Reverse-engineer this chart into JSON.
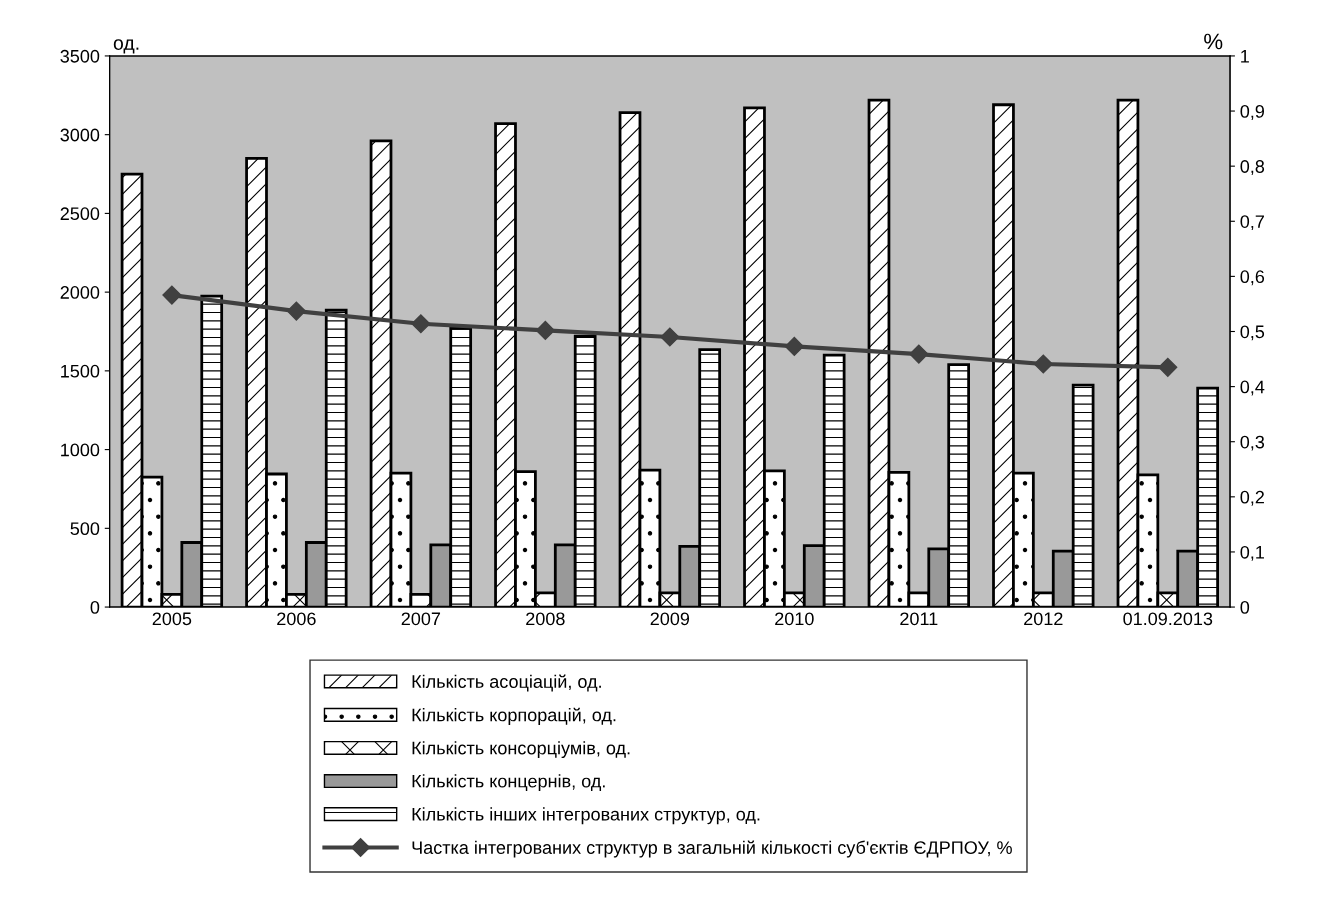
{
  "chart_data": {
    "type": "bar",
    "categories": [
      "2005",
      "2006",
      "2007",
      "2008",
      "2009",
      "2010",
      "2011",
      "2012",
      "01.09.2013"
    ],
    "ylabel": "од.",
    "y2label": "%",
    "ylim": [
      0,
      3500
    ],
    "yticks": [
      0,
      500,
      1000,
      1500,
      2000,
      2500,
      3000,
      3500
    ],
    "y2lim": [
      0,
      1
    ],
    "y2ticks": [
      0,
      {
        "value": 0.1,
        "label": "0,1"
      },
      {
        "value": 0.2,
        "label": "0,2"
      },
      {
        "value": 0.3,
        "label": "0,3"
      },
      {
        "value": 0.4,
        "label": "0,4"
      },
      {
        "value": 0.5,
        "label": "0,5"
      },
      {
        "value": 0.6,
        "label": "0,6"
      },
      {
        "value": 0.7,
        "label": "0,7"
      },
      {
        "value": 0.8,
        "label": "0,8"
      },
      {
        "value": 0.9,
        "label": "0,9"
      },
      1
    ],
    "grid": false,
    "legend": "bottom",
    "series": [
      {
        "name": "Кількість асоціацій, од.",
        "color": "#000000",
        "values": [
          2750,
          2850,
          2960,
          3070,
          3140,
          3170,
          3220,
          3190,
          3220
        ]
      },
      {
        "name": "Кількість корпорацій, од.",
        "color": "#000000",
        "values": [
          825,
          845,
          850,
          860,
          870,
          865,
          855,
          850,
          840
        ]
      },
      {
        "name": "Кількість консорціумів, од.",
        "color": "#000000",
        "values": [
          80,
          80,
          80,
          90,
          90,
          90,
          90,
          90,
          90
        ]
      },
      {
        "name": "Кількість концернів, од.",
        "color": "#999999",
        "values": [
          410,
          410,
          395,
          395,
          385,
          390,
          370,
          355,
          355
        ]
      },
      {
        "name": "Кількість інших інтегрованих структур, од.",
        "color": "#000000",
        "values": [
          1975,
          1885,
          1770,
          1720,
          1635,
          1600,
          1540,
          1410,
          1390
        ]
      },
      {
        "name": "Частка інтегрованих структур в загальній кількості суб'єктів ЄДРПОУ, %",
        "type": "line",
        "axis": "y2",
        "color": "#404040",
        "marker": "diamond",
        "line_style": "solid",
        "values": [
          0.566,
          0.537,
          0.514,
          0.502,
          0.49,
          0.473,
          0.459,
          0.441,
          0.435
        ]
      }
    ]
  }
}
